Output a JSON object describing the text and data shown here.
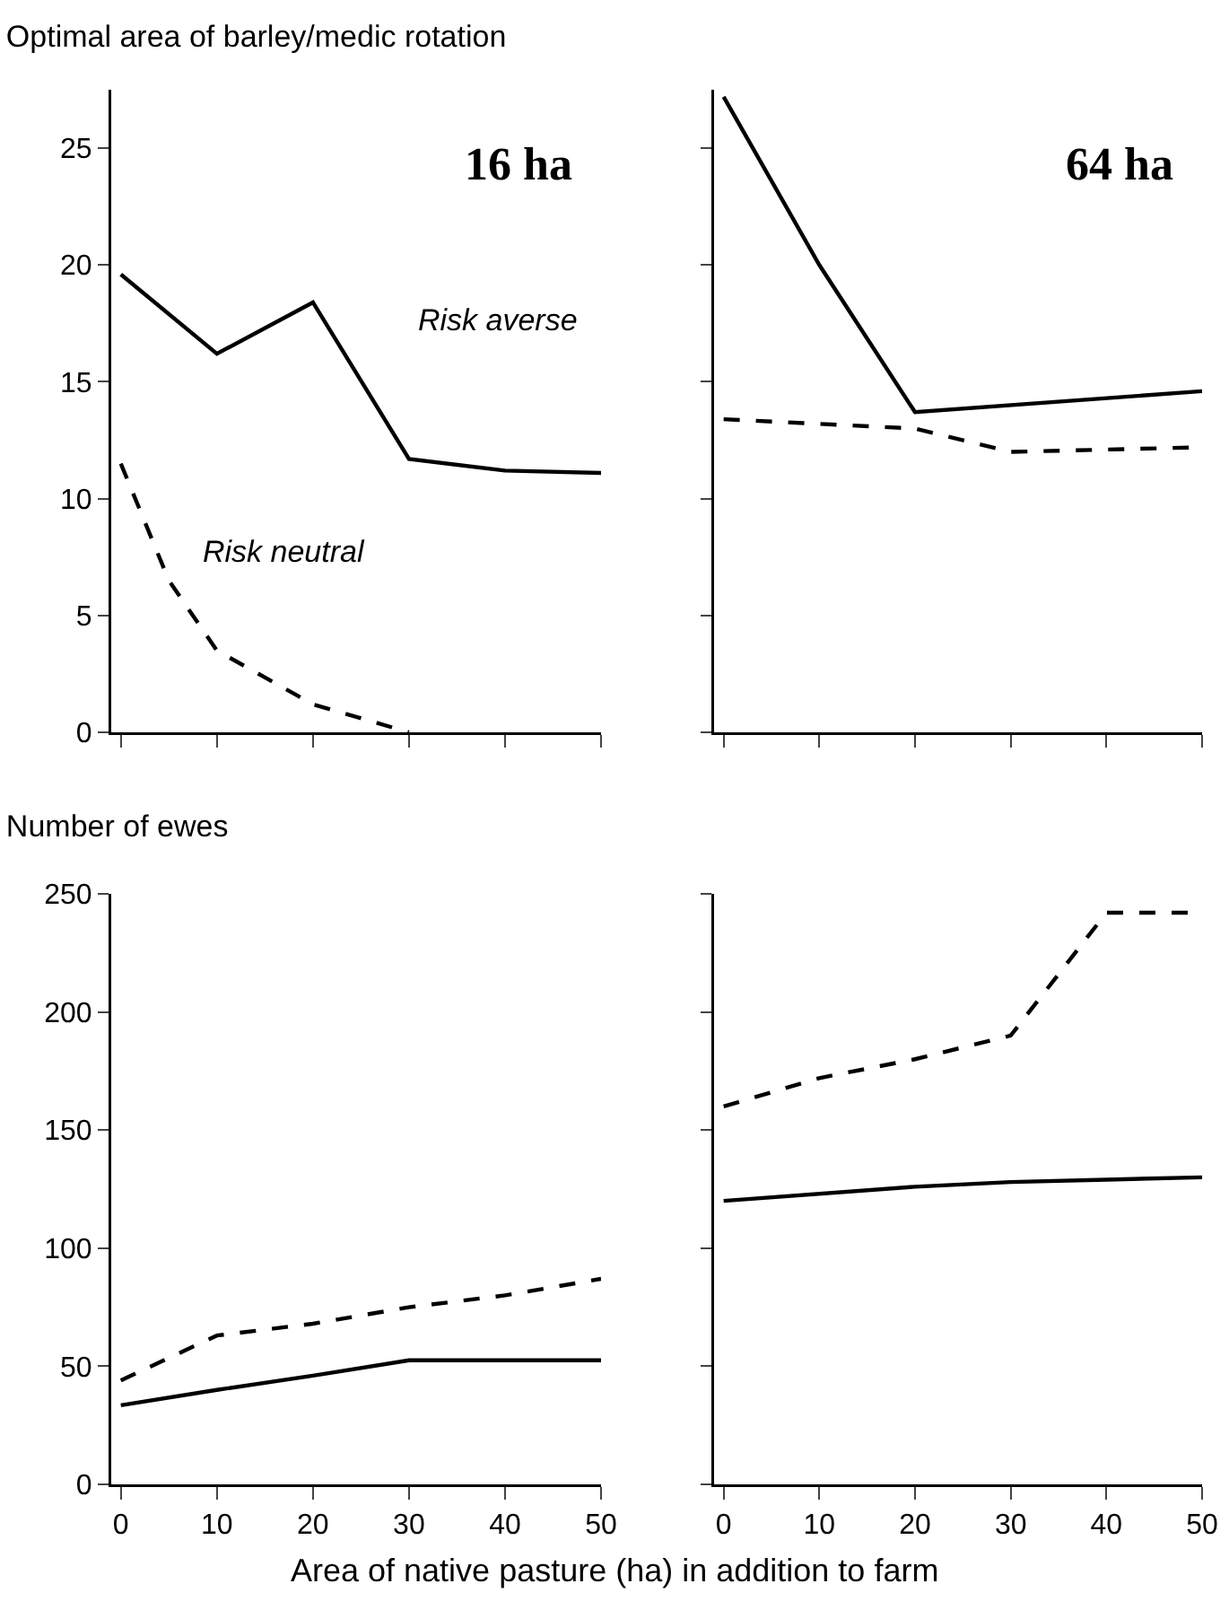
{
  "chart_data": [
    {
      "type": "line",
      "title": "Optimal area of barley/medic rotation",
      "tick_labels": "y",
      "xlim": [
        -1,
        50
      ],
      "xticks": [
        0,
        10,
        20,
        30,
        40,
        50
      ],
      "ylim": [
        0,
        27.5
      ],
      "yticks": [
        0,
        5,
        10,
        15,
        20,
        25
      ],
      "grid": false,
      "series": [
        {
          "x": [
            0,
            10,
            20,
            30,
            40,
            50
          ],
          "values": [
            19.6,
            16.2,
            18.4,
            11.7,
            11.2,
            11.1
          ],
          "color": "#000000",
          "line_style": "solid"
        },
        {
          "x": [
            0,
            5,
            10,
            20,
            30
          ],
          "values": [
            11.5,
            6.5,
            3.5,
            1.2,
            0
          ],
          "color": "#000000",
          "line_style": "dashed"
        }
      ],
      "annotations": [
        "16 ha",
        "Risk averse",
        "Risk neutral"
      ]
    },
    {
      "type": "line",
      "tick_labels": false,
      "xlim": [
        -1,
        50
      ],
      "xticks": [
        0,
        10,
        20,
        30,
        40,
        50
      ],
      "ylim": [
        0,
        27.5
      ],
      "yticks": [
        0,
        5,
        10,
        15,
        20,
        25
      ],
      "grid": false,
      "series": [
        {
          "x": [
            0,
            10,
            20,
            50
          ],
          "values": [
            27.2,
            20,
            13.7,
            14.6
          ],
          "color": "#000000",
          "line_style": "solid"
        },
        {
          "x": [
            0,
            20,
            30,
            50
          ],
          "values": [
            13.4,
            13,
            12,
            12.2
          ],
          "color": "#000000",
          "line_style": "dashed"
        }
      ],
      "annotations": [
        "64 ha"
      ]
    },
    {
      "type": "line",
      "title": "Number of ewes",
      "xlabel": "Area of native pasture (ha) in addition to farm",
      "xlim": [
        -1,
        50
      ],
      "xticks": [
        0,
        10,
        20,
        30,
        40,
        50
      ],
      "ylim": [
        0,
        250
      ],
      "yticks": [
        0,
        50,
        100,
        150,
        200,
        250
      ],
      "grid": false,
      "series": [
        {
          "x": [
            0,
            10,
            20,
            30,
            50
          ],
          "values": [
            33.5,
            40,
            46,
            52.5,
            52.5
          ],
          "color": "#000000",
          "line_style": "solid"
        },
        {
          "x": [
            0,
            10,
            20,
            30,
            40,
            50
          ],
          "values": [
            44,
            63,
            68,
            75,
            80,
            87
          ],
          "color": "#000000",
          "line_style": "dashed"
        }
      ]
    },
    {
      "type": "line",
      "tick_labels": "x",
      "xlim": [
        -1,
        50
      ],
      "xticks": [
        0,
        10,
        20,
        30,
        40,
        50
      ],
      "ylim": [
        0,
        250
      ],
      "yticks": [
        0,
        50,
        100,
        150,
        200,
        250
      ],
      "grid": false,
      "series": [
        {
          "x": [
            0,
            20,
            30,
            40,
            50
          ],
          "values": [
            120,
            126,
            128,
            129,
            130
          ],
          "color": "#000000",
          "line_style": "solid"
        },
        {
          "x": [
            0,
            10,
            20,
            30,
            40,
            50
          ],
          "values": [
            160,
            172,
            180,
            190,
            242,
            242
          ],
          "color": "#000000",
          "line_style": "dashed"
        }
      ]
    }
  ]
}
